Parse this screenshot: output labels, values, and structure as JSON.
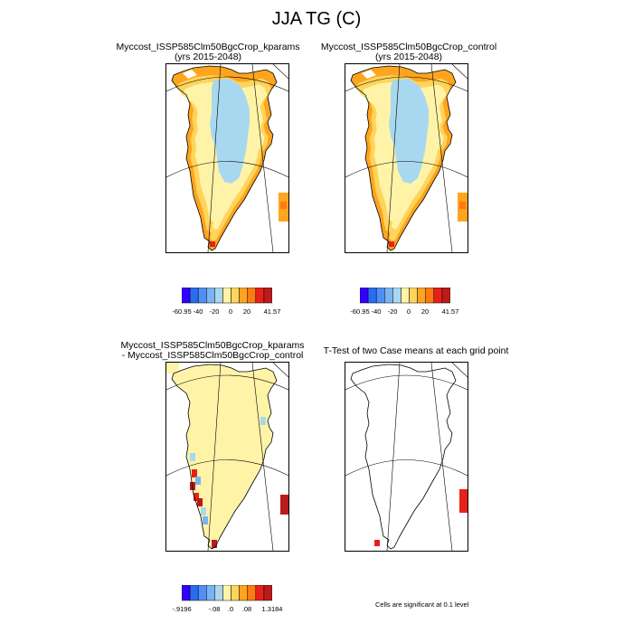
{
  "figure": {
    "title": "JJA TG (C)",
    "footnote": "Cells are significant at 0.1 level"
  },
  "panels": [
    {
      "title_line1": "Myccost_ISSP585Clm50BgcCrop_kparams",
      "title_line2": "(yrs 2015-2048)"
    },
    {
      "title_line1": "Myccost_ISSP585Clm50BgcCrop_control",
      "title_line2": "(yrs 2015-2048)"
    },
    {
      "title_line1": "Myccost_ISSP585Clm50BgcCrop_kparams",
      "title_line2": "- Myccost_ISSP585Clm50BgcCrop_control"
    },
    {
      "title_line1": "T-Test of two Case means at each grid point",
      "title_line2": ""
    }
  ],
  "colorbars": {
    "absolute": {
      "labels": [
        "-60.95",
        "-40",
        "-20",
        "0",
        "20",
        "41.57"
      ],
      "colors": [
        "#3300ff",
        "#2a6cf0",
        "#4f8ff5",
        "#7ab3f2",
        "#a8d8f0",
        "#fff3a8",
        "#ffd45a",
        "#ffa41e",
        "#ff7a12",
        "#e8201a",
        "#b81c1c"
      ]
    },
    "difference": {
      "labels": [
        "-.9196",
        "-.08",
        ".0",
        ".08",
        "1.3184"
      ],
      "colors": [
        "#3300ff",
        "#2a6cf0",
        "#4f8ff5",
        "#7ab3f2",
        "#a8d8f0",
        "#fff3a8",
        "#ffd45a",
        "#ffa41e",
        "#ff7a12",
        "#e8201a",
        "#b81c1c"
      ]
    }
  },
  "chart_data": [
    {
      "type": "heatmap",
      "title": "Myccost_ISSP585Clm50BgcCrop_kparams",
      "subtitle": "(yrs 2015-2048)",
      "variable": "JJA TG (C)",
      "region": "Greenland",
      "colorbar_range": [
        -60.95,
        41.57
      ]
    },
    {
      "type": "heatmap",
      "title": "Myccost_ISSP585Clm50BgcCrop_control",
      "subtitle": "(yrs 2015-2048)",
      "variable": "JJA TG (C)",
      "region": "Greenland",
      "colorbar_range": [
        -60.95,
        41.57
      ]
    },
    {
      "type": "heatmap",
      "title": "Myccost_ISSP585Clm50BgcCrop_kparams - Myccost_ISSP585Clm50BgcCrop_control",
      "variable": "JJA TG (C)",
      "region": "Greenland",
      "colorbar_range": [
        -0.9196,
        1.3184
      ]
    },
    {
      "type": "heatmap",
      "title": "T-Test of two Case means at each grid point",
      "note": "Cells are significant at 0.1 level",
      "significance_color": "#e8201a"
    }
  ]
}
